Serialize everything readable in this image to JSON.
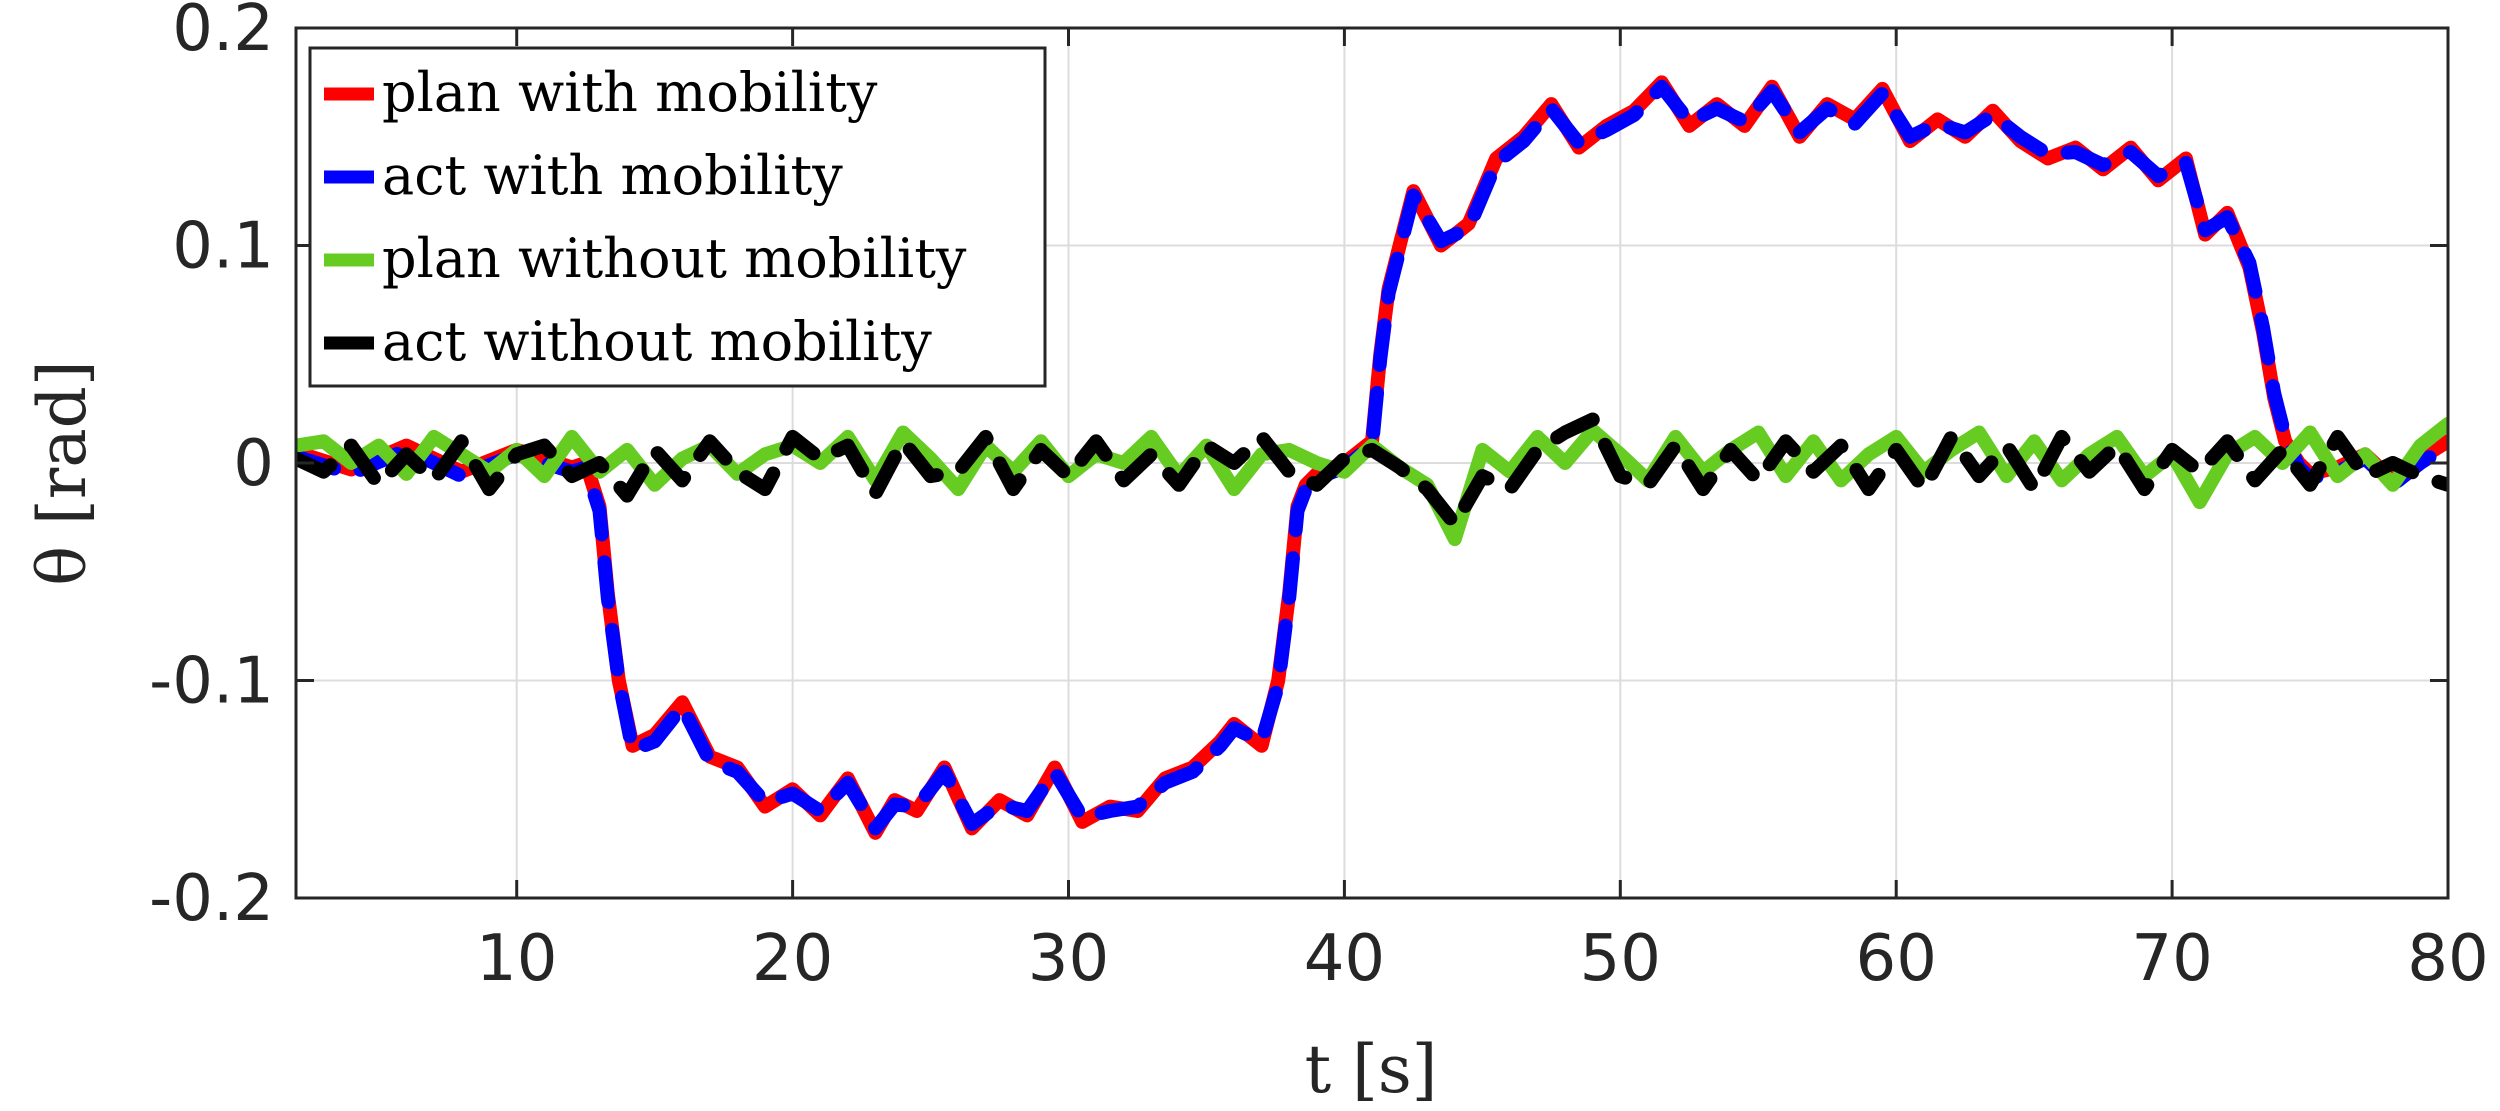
{
  "chart_data": {
    "type": "line",
    "title": "",
    "xlabel": "t [s]",
    "ylabel": "θ [rad]",
    "xlim": [
      2,
      80
    ],
    "ylim": [
      -0.2,
      0.2
    ],
    "xticks": [
      10,
      20,
      30,
      40,
      50,
      60,
      70,
      80
    ],
    "xtick_labels": [
      "10",
      "20",
      "30",
      "40",
      "50",
      "60",
      "70",
      "80"
    ],
    "yticks": [
      -0.2,
      -0.1,
      0,
      0.1,
      0.2
    ],
    "ytick_labels": [
      "-0.2",
      "-0.1",
      "0",
      "0.1",
      "0.2"
    ],
    "grid": true,
    "legend_position": "top-left",
    "series": [
      {
        "name": "plan with mobility",
        "color": "#ff0000",
        "dashed": false,
        "x": [
          2,
          4,
          6,
          8,
          10,
          11,
          12,
          12.5,
          13,
          13.3,
          13.7,
          14.2,
          15,
          16,
          17,
          18,
          19,
          20,
          21,
          22,
          23,
          23.7,
          24.5,
          25.5,
          26.5,
          27.5,
          28.5,
          29.5,
          30.5,
          31.5,
          32.5,
          33.5,
          34.5,
          35.5,
          36,
          37,
          37.6,
          38,
          38.3,
          38.6,
          39,
          40,
          41,
          41.3,
          41.6,
          42,
          42.5,
          43.5,
          44.5,
          45.5,
          46.5,
          47.5,
          48.5,
          49.5,
          50.5,
          51.5,
          52.5,
          53.5,
          54.5,
          55.5,
          56.5,
          57.5,
          58.5,
          59.5,
          60.5,
          61.5,
          62.5,
          63.5,
          64.5,
          65.5,
          66.5,
          67.5,
          68.5,
          69.5,
          70.5,
          71.2,
          72,
          72.8,
          73.3,
          73.7,
          74.1,
          74.6,
          75,
          76,
          77,
          78,
          79,
          80
        ],
        "y": [
          0.005,
          -0.003,
          0.008,
          -0.004,
          0.006,
          0.002,
          -0.002,
          0.0,
          -0.02,
          -0.06,
          -0.1,
          -0.13,
          -0.125,
          -0.11,
          -0.135,
          -0.14,
          -0.158,
          -0.15,
          -0.162,
          -0.145,
          -0.17,
          -0.155,
          -0.16,
          -0.14,
          -0.168,
          -0.155,
          -0.162,
          -0.14,
          -0.165,
          -0.158,
          -0.16,
          -0.145,
          -0.14,
          -0.128,
          -0.12,
          -0.13,
          -0.1,
          -0.06,
          -0.02,
          -0.01,
          -0.005,
          0.0,
          0.01,
          0.05,
          0.08,
          0.1,
          0.125,
          0.1,
          0.11,
          0.14,
          0.15,
          0.165,
          0.145,
          0.155,
          0.162,
          0.175,
          0.155,
          0.165,
          0.155,
          0.173,
          0.15,
          0.165,
          0.158,
          0.172,
          0.148,
          0.158,
          0.15,
          0.162,
          0.148,
          0.14,
          0.145,
          0.135,
          0.145,
          0.13,
          0.14,
          0.105,
          0.115,
          0.09,
          0.06,
          0.03,
          0.01,
          0.0,
          -0.005,
          -0.002,
          0.004,
          -0.008,
          0.002,
          0.01
        ]
      },
      {
        "name": "act with mobility",
        "color": "#0000ff",
        "dashed": true,
        "x": [
          2,
          4,
          6,
          8,
          10,
          11,
          12,
          12.5,
          13,
          13.3,
          13.7,
          14.2,
          15,
          16,
          17,
          18,
          19,
          20,
          21,
          22,
          23,
          23.7,
          24.5,
          25.5,
          26.5,
          27.5,
          28.5,
          29.5,
          30.5,
          31.5,
          32.5,
          33.5,
          34.5,
          35.5,
          36,
          37,
          37.6,
          38,
          38.3,
          38.6,
          39,
          40,
          41,
          41.3,
          41.6,
          42,
          42.5,
          43.5,
          44.5,
          45.5,
          46.5,
          47.5,
          48.5,
          49.5,
          50.5,
          51.5,
          52.5,
          53.5,
          54.5,
          55.5,
          56.5,
          57.5,
          58.5,
          59.5,
          60.5,
          61.5,
          62.5,
          63.5,
          64.5,
          65.5,
          66.5,
          67.5,
          68.5,
          69.5,
          70.5,
          71.2,
          72,
          72.8,
          73.3,
          73.7,
          74.1,
          74.6,
          75,
          76,
          77,
          78,
          79,
          80
        ],
        "y": [
          0.003,
          -0.005,
          0.006,
          -0.006,
          0.004,
          0.0,
          -0.004,
          -0.002,
          -0.022,
          -0.062,
          -0.1,
          -0.132,
          -0.128,
          -0.112,
          -0.137,
          -0.142,
          -0.156,
          -0.152,
          -0.16,
          -0.147,
          -0.168,
          -0.157,
          -0.158,
          -0.142,
          -0.166,
          -0.157,
          -0.16,
          -0.142,
          -0.163,
          -0.16,
          -0.158,
          -0.147,
          -0.142,
          -0.13,
          -0.122,
          -0.128,
          -0.102,
          -0.062,
          -0.022,
          -0.012,
          -0.007,
          -0.002,
          0.008,
          0.048,
          0.078,
          0.098,
          0.123,
          0.102,
          0.108,
          0.138,
          0.148,
          0.163,
          0.147,
          0.153,
          0.16,
          0.173,
          0.157,
          0.163,
          0.157,
          0.171,
          0.152,
          0.163,
          0.156,
          0.17,
          0.15,
          0.156,
          0.152,
          0.16,
          0.15,
          0.142,
          0.143,
          0.137,
          0.143,
          0.132,
          0.138,
          0.107,
          0.113,
          0.092,
          0.062,
          0.032,
          0.012,
          -0.002,
          -0.007,
          -0.004,
          0.002,
          -0.01,
          0.0,
          0.008
        ]
      },
      {
        "name": "plan without mobility",
        "color": "#66cc22",
        "dashed": false,
        "x": [
          2,
          3,
          4,
          5,
          6,
          7,
          8,
          9,
          10,
          11,
          12,
          13,
          14,
          15,
          16,
          17,
          18,
          19,
          20,
          21,
          22,
          23,
          24,
          25,
          26,
          27,
          28,
          29,
          30,
          31,
          32,
          33,
          34,
          35,
          36,
          37,
          38,
          39,
          40,
          41,
          42,
          43,
          44,
          45,
          46,
          47,
          48,
          49,
          50,
          51,
          52,
          53,
          54,
          55,
          56,
          57,
          58,
          59,
          60,
          61,
          62,
          63,
          64,
          65,
          66,
          67,
          68,
          69,
          70,
          71,
          72,
          73,
          74,
          75,
          76,
          77,
          78,
          79,
          80
        ],
        "y": [
          0.008,
          0.01,
          0.0,
          0.008,
          -0.005,
          0.012,
          0.004,
          -0.004,
          0.006,
          -0.006,
          0.012,
          -0.004,
          0.006,
          -0.01,
          0.002,
          0.008,
          -0.005,
          0.004,
          0.008,
          0.0,
          0.012,
          -0.008,
          0.014,
          0.002,
          -0.012,
          0.008,
          -0.004,
          0.01,
          -0.006,
          0.004,
          0.0,
          0.012,
          -0.006,
          0.008,
          -0.012,
          0.004,
          0.006,
          0.0,
          -0.004,
          0.008,
          -0.002,
          -0.01,
          -0.035,
          0.006,
          -0.004,
          0.012,
          0.0,
          0.015,
          0.004,
          -0.008,
          0.012,
          -0.004,
          0.006,
          0.014,
          -0.006,
          0.01,
          -0.008,
          0.004,
          0.012,
          -0.004,
          0.006,
          0.014,
          -0.006,
          0.01,
          -0.008,
          0.004,
          0.012,
          -0.006,
          0.004,
          -0.018,
          0.004,
          0.012,
          0.0,
          0.014,
          -0.006,
          0.004,
          -0.01,
          0.008,
          0.018
        ]
      },
      {
        "name": "act without mobility",
        "color": "#000000",
        "dashed": true,
        "x": [
          2,
          3,
          4,
          5,
          6,
          7,
          8,
          9,
          10,
          11,
          12,
          13,
          14,
          15,
          16,
          17,
          18,
          19,
          20,
          21,
          22,
          23,
          24,
          25,
          26,
          27,
          28,
          29,
          30,
          31,
          32,
          33,
          34,
          35,
          36,
          37,
          38,
          39,
          40,
          41,
          42,
          43,
          44,
          45,
          46,
          47,
          48,
          49,
          50,
          51,
          52,
          53,
          54,
          55,
          56,
          57,
          58,
          59,
          60,
          61,
          62,
          63,
          64,
          65,
          66,
          67,
          68,
          69,
          70,
          71,
          72,
          73,
          74,
          75,
          76,
          77,
          78,
          79,
          80
        ],
        "y": [
          0.002,
          -0.004,
          0.008,
          -0.01,
          0.004,
          -0.008,
          0.01,
          -0.012,
          0.004,
          0.008,
          -0.006,
          0.0,
          -0.015,
          0.006,
          -0.008,
          0.01,
          -0.004,
          -0.012,
          0.012,
          0.002,
          0.008,
          -0.014,
          0.01,
          -0.006,
          -0.004,
          0.012,
          -0.012,
          0.006,
          -0.006,
          0.01,
          -0.008,
          0.004,
          -0.01,
          0.008,
          0.0,
          0.012,
          -0.004,
          -0.01,
          0.002,
          0.006,
          -0.002,
          -0.012,
          -0.028,
          -0.006,
          -0.012,
          0.006,
          0.014,
          0.02,
          -0.006,
          -0.01,
          0.008,
          -0.012,
          0.006,
          -0.008,
          0.01,
          -0.004,
          0.008,
          -0.012,
          0.006,
          -0.012,
          0.012,
          -0.006,
          0.008,
          -0.012,
          0.012,
          -0.004,
          0.008,
          -0.012,
          0.006,
          -0.004,
          0.01,
          -0.008,
          0.006,
          -0.01,
          0.012,
          -0.006,
          0.0,
          -0.006,
          -0.01
        ]
      }
    ]
  }
}
